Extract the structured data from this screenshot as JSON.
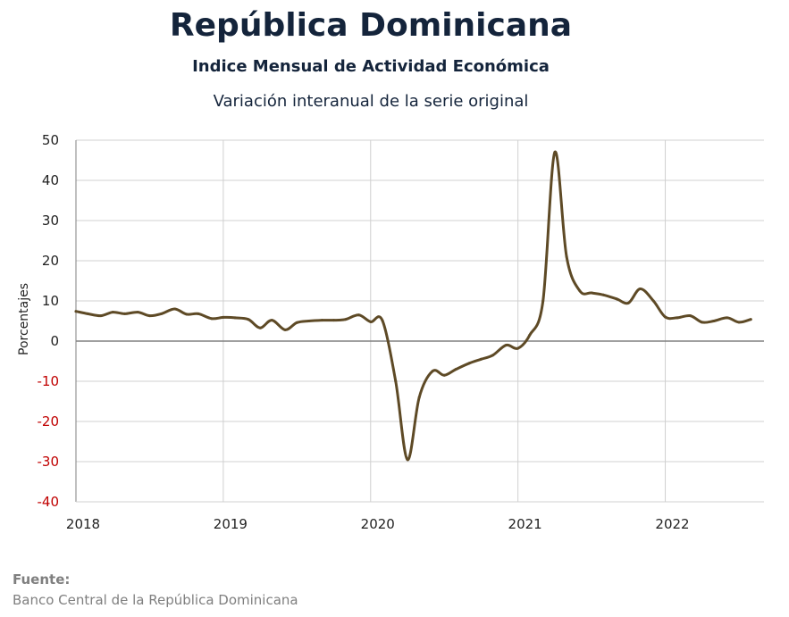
{
  "header": {
    "title": "República Dominicana",
    "subtitle": "Indice Mensual de  Actividad Económica",
    "subtitle2": "Variación interanual de la serie original"
  },
  "source": {
    "label": "Fuente:",
    "text": "Banco Central de la República Dominicana"
  },
  "colors": {
    "line": "#5e4a26",
    "negative_tick": "#c00000",
    "positive_tick": "#222222",
    "grid": "#d0d0d0",
    "zero_line": "#808080"
  },
  "chart_data": {
    "type": "line",
    "ylabel": "Porcentajes",
    "xlabel": "",
    "ylim": [
      -40,
      50
    ],
    "yticks": [
      50,
      40,
      30,
      20,
      10,
      0,
      -10,
      -20,
      -30,
      -40
    ],
    "xlim": [
      2018.0,
      2022.67
    ],
    "xticks": [
      "2018",
      "2019",
      "2020",
      "2021",
      "2022"
    ],
    "grid": true,
    "series": [
      {
        "x": [
          2018.0,
          2018.08,
          2018.17,
          2018.25,
          2018.33,
          2018.42,
          2018.5,
          2018.58,
          2018.67,
          2018.75,
          2018.83,
          2018.92,
          2019.0,
          2019.08,
          2019.17,
          2019.25,
          2019.33,
          2019.42,
          2019.5,
          2019.58,
          2019.67,
          2019.75,
          2019.83,
          2019.92,
          2020.0,
          2020.08,
          2020.17,
          2020.25,
          2020.33,
          2020.42,
          2020.5,
          2020.58,
          2020.67,
          2020.75,
          2020.83,
          2020.92,
          2021.0,
          2021.08,
          2021.17,
          2021.25,
          2021.33,
          2021.42,
          2021.5,
          2021.58,
          2021.67,
          2021.75,
          2021.83,
          2021.92,
          2022.0,
          2022.08,
          2022.17,
          2022.25,
          2022.33,
          2022.42,
          2022.5,
          2022.58
        ],
        "values": [
          7.4,
          6.8,
          6.3,
          7.2,
          6.8,
          7.2,
          6.3,
          6.8,
          8.0,
          6.7,
          6.8,
          5.6,
          5.9,
          5.8,
          5.4,
          3.3,
          5.2,
          2.8,
          4.6,
          5.0,
          5.2,
          5.2,
          5.4,
          6.5,
          4.8,
          5.1,
          -10.0,
          -29.5,
          -14.0,
          -7.5,
          -8.5,
          -7.0,
          -5.5,
          -4.5,
          -3.5,
          -1.0,
          -1.8,
          1.5,
          10.0,
          47.0,
          21.0,
          12.5,
          12.0,
          11.5,
          10.5,
          9.5,
          13.0,
          10.0,
          6.0,
          5.8,
          6.3,
          4.7,
          5.0,
          5.8,
          4.7,
          5.4
        ]
      }
    ]
  }
}
